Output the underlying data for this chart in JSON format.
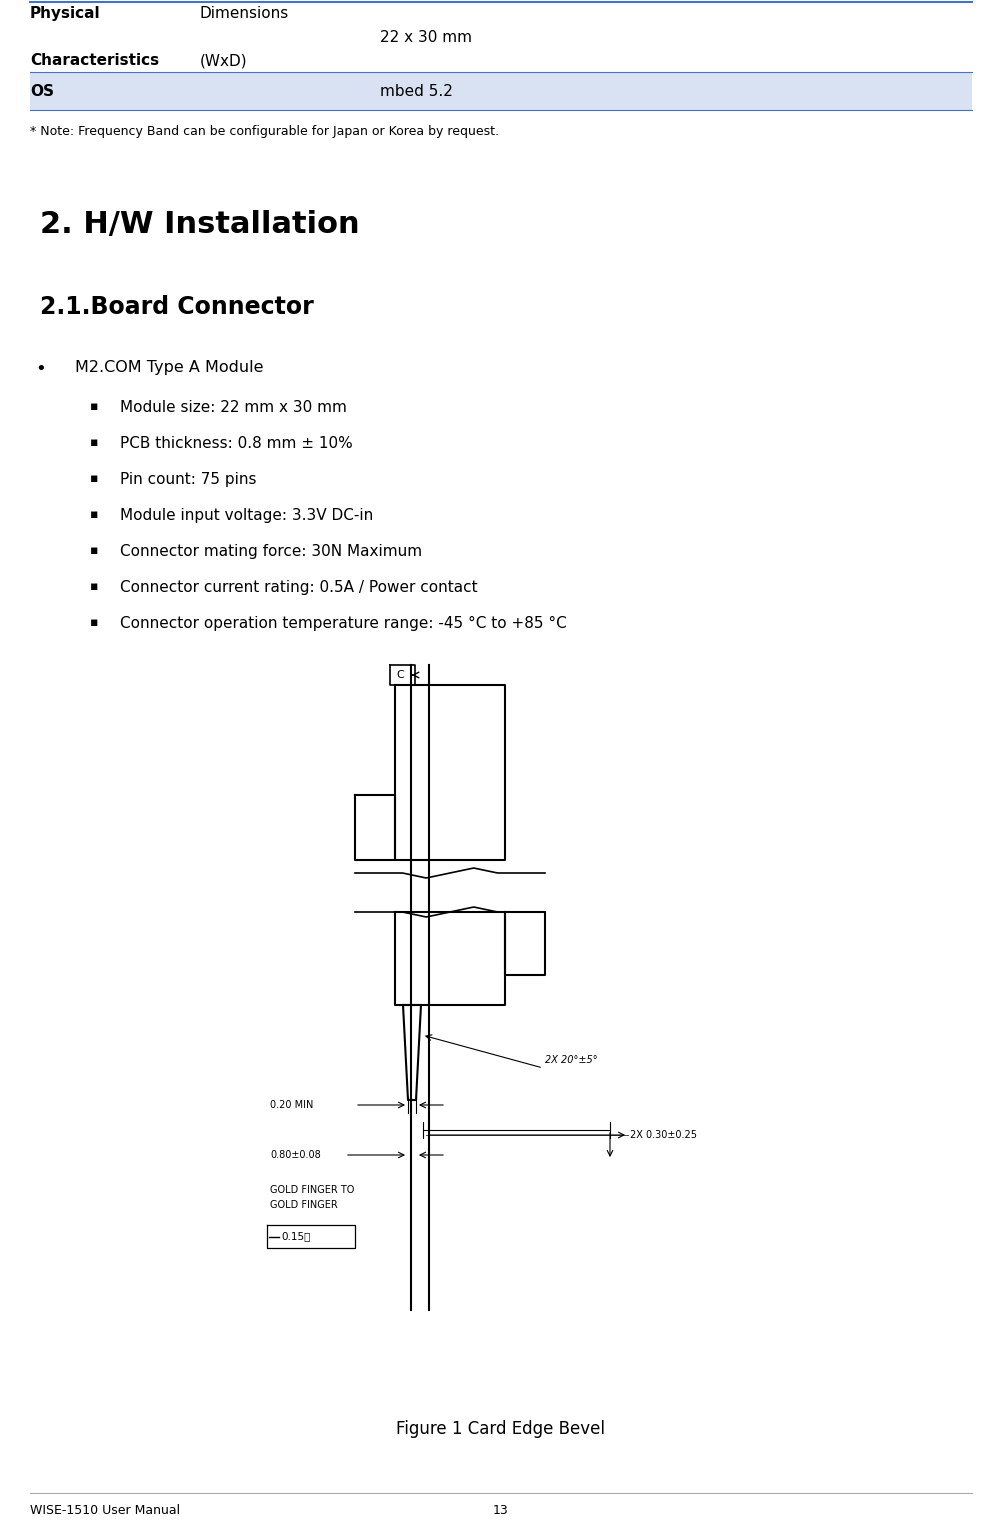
{
  "page_width": 10.02,
  "page_height": 15.27,
  "dpi": 100,
  "bg_color": "#ffffff",
  "table": {
    "row1_col1_line1": "Physical",
    "row1_col1_line2": "Characteristics",
    "row1_col2_line1": "Dimensions",
    "row1_col2_line2": "(WxD)",
    "row1_col3": "22 x 30 mm",
    "row2_col1": "OS",
    "row2_col3": "mbed 5.2",
    "row2_bg": "#d9e2f3",
    "divider_color": "#4472c4",
    "text_color": "#000000"
  },
  "note": "* Note: Frequency Band can be configurable for Japan or Korea by request.",
  "section_title": "2. H/W Installation",
  "subsection_title": "2.1.Board Connector",
  "bullet_main": "M2.COM Type A Module",
  "bullets": [
    "Module size: 22 mm x 30 mm",
    "PCB thickness: 0.8 mm ± 10%",
    "Pin count: 75 pins",
    "Module input voltage: 3.3V DC-in",
    "Connector mating force: 30N Maximum",
    "Connector current rating: 0.5A / Power contact",
    "Connector operation temperature range: -45 °C to +85 °C"
  ],
  "figure_caption": "Figure 1 Card Edge Bevel",
  "footer_left": "WISE-1510 User Manual",
  "footer_center": "13",
  "divider_color": "#4472c4",
  "line_color": "#000000",
  "ann_color": "#555555"
}
